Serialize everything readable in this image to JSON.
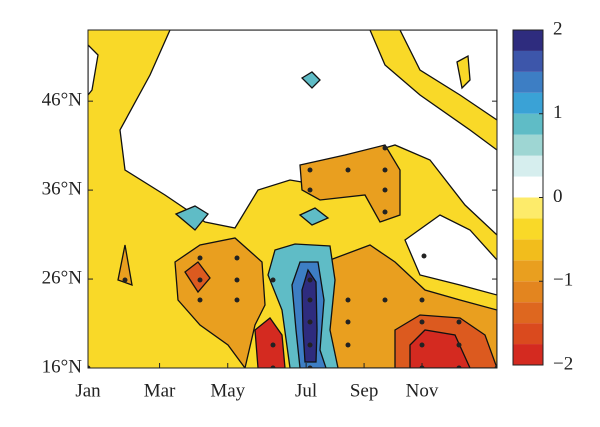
{
  "chart_data": {
    "type": "contour",
    "xlim": [
      0,
      12
    ],
    "xticks": [
      {
        "value": 0,
        "label": "Jan"
      },
      {
        "value": 2.1,
        "label": "Mar"
      },
      {
        "value": 4.1,
        "label": "May"
      },
      {
        "value": 6.4,
        "label": "Jul"
      },
      {
        "value": 8.1,
        "label": "Sep"
      },
      {
        "value": 9.8,
        "label": "Nov"
      }
    ],
    "ylim": [
      16,
      54
    ],
    "yticks": [
      {
        "value": 16,
        "label": "16°N"
      },
      {
        "value": 26,
        "label": "26°N"
      },
      {
        "value": 36,
        "label": "36°N"
      },
      {
        "value": 46,
        "label": "46°N"
      }
    ],
    "colorbar": {
      "levels": [
        -2,
        -1.75,
        -1.5,
        -1.25,
        -1,
        -0.75,
        -0.5,
        -0.25,
        0,
        0.25,
        0.5,
        0.75,
        1,
        1.25,
        1.5,
        1.75,
        2
      ],
      "colors": [
        "#d42a20",
        "#da4a1e",
        "#de671f",
        "#e3851f",
        "#e99f1f",
        "#f2bd1c",
        "#f9d928",
        "#fdeb6a",
        "#ffffff",
        "#d6eeee",
        "#9ed6d3",
        "#5fbcc6",
        "#3aa2d6",
        "#3d7ec4",
        "#3d56aa",
        "#2e2c7e"
      ],
      "ticks": [
        {
          "value": -2,
          "label": "−2"
        },
        {
          "value": -1,
          "label": "−1"
        },
        0,
        1,
        2
      ]
    }
  }
}
